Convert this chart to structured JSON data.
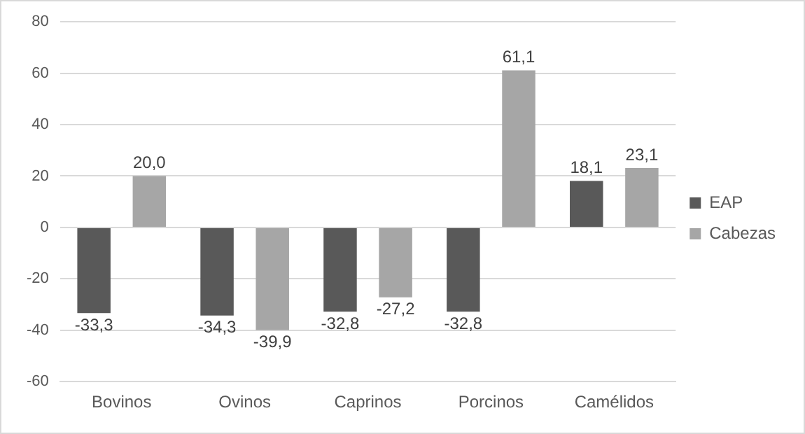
{
  "chart_data": {
    "type": "bar",
    "categories": [
      "Bovinos",
      "Ovinos",
      "Caprinos",
      "Porcinos",
      "Camélidos"
    ],
    "series": [
      {
        "name": "EAP",
        "color": "#595959",
        "values": [
          -33.3,
          -34.3,
          -32.8,
          -32.8,
          18.1
        ]
      },
      {
        "name": "Cabezas",
        "color": "#a6a6a6",
        "values": [
          20.0,
          -39.9,
          -27.2,
          61.1,
          23.1
        ]
      }
    ],
    "value_labels": [
      [
        "-33,3",
        "-34,3",
        "-32,8",
        "-32,8",
        "18,1"
      ],
      [
        "20,0",
        "-39,9",
        "-27,2",
        "61,1",
        "23,1"
      ]
    ],
    "ylim": [
      -60,
      80
    ],
    "yticks": [
      -60,
      -40,
      -20,
      0,
      20,
      40,
      60,
      80
    ],
    "grid": "y",
    "legend": "right"
  }
}
